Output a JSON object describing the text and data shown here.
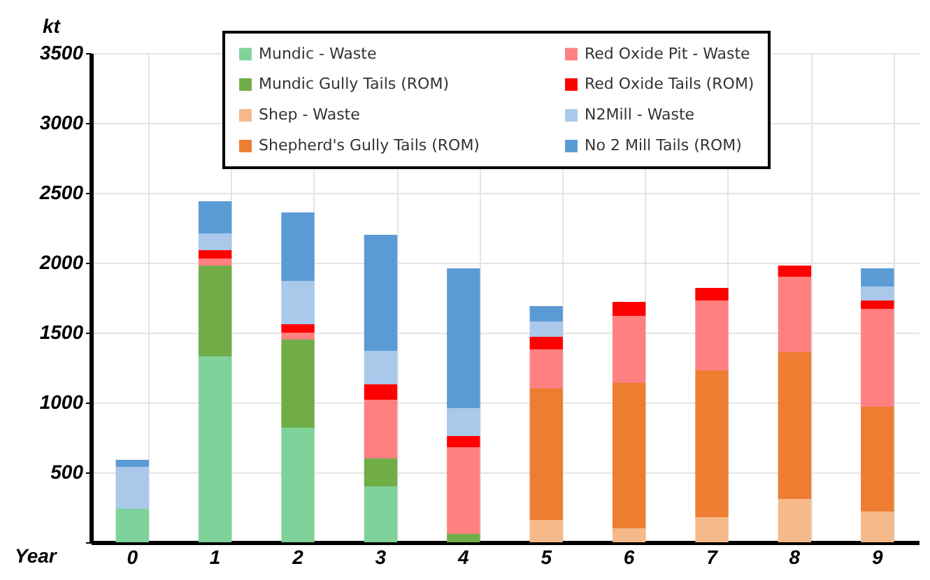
{
  "chart_data": {
    "type": "bar",
    "stacked": true,
    "xlabel": "Year",
    "ylabel": "kt",
    "categories": [
      "0",
      "1",
      "2",
      "3",
      "4",
      "5",
      "6",
      "7",
      "8",
      "9"
    ],
    "series": [
      {
        "name": "Mundic - Waste",
        "color": "#7fd39a",
        "values": [
          240,
          1330,
          820,
          400,
          0,
          0,
          0,
          0,
          0,
          0
        ]
      },
      {
        "name": "Mundic Gully Tails (ROM)",
        "color": "#70ad47",
        "values": [
          0,
          650,
          630,
          200,
          60,
          0,
          0,
          0,
          0,
          0
        ]
      },
      {
        "name": "Shep - Waste",
        "color": "#f5b98a",
        "values": [
          0,
          0,
          0,
          0,
          0,
          160,
          100,
          180,
          310,
          220
        ]
      },
      {
        "name": "Shepherd's Gully Tails (ROM)",
        "color": "#ed7d31",
        "values": [
          0,
          0,
          0,
          0,
          0,
          940,
          1040,
          1050,
          1050,
          750
        ]
      },
      {
        "name": "Red Oxide Pit - Waste",
        "color": "#ff8080",
        "values": [
          0,
          50,
          50,
          420,
          620,
          280,
          480,
          500,
          540,
          700
        ]
      },
      {
        "name": "Red Oxide Tails (ROM)",
        "color": "#ff0000",
        "values": [
          0,
          60,
          60,
          110,
          80,
          90,
          100,
          90,
          80,
          60
        ]
      },
      {
        "name": "N2Mill - Waste",
        "color": "#a9c8ea",
        "values": [
          300,
          120,
          310,
          240,
          200,
          110,
          0,
          0,
          0,
          100
        ]
      },
      {
        "name": "No 2 Mill Tails (ROM)",
        "color": "#5b9bd5",
        "values": [
          50,
          230,
          490,
          830,
          1000,
          110,
          0,
          0,
          0,
          130
        ]
      }
    ],
    "ylim": [
      0,
      3500
    ],
    "yticks": [
      {
        "value": 0,
        "label": null
      },
      500,
      1000,
      1500,
      2000,
      2500,
      3000,
      3500
    ],
    "grid": true,
    "legend": "top"
  }
}
